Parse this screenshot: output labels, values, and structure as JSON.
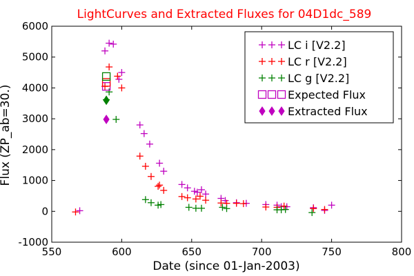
{
  "chart_data": {
    "type": "scatter",
    "title": "LightCurves and Extracted Fluxes for 04D1dc_589",
    "xlabel": "Date (since 01-Jan-2003)",
    "ylabel": "Flux (ZP_ab=30.)",
    "xlim": [
      550,
      800
    ],
    "ylim": [
      -1000,
      6000
    ],
    "xticks": [
      "550",
      "600",
      "650",
      "700",
      "750",
      "800"
    ],
    "yticks": [
      "-1000",
      "0",
      "1000",
      "2000",
      "3000",
      "4000",
      "5000",
      "6000"
    ],
    "legend_position": "top-right",
    "series": [
      {
        "name": "LC i [V2.2]",
        "marker": "plus",
        "color": "#bf00bf",
        "points": [
          [
            570,
            20
          ],
          [
            588,
            5200
          ],
          [
            591,
            5450
          ],
          [
            594,
            5420
          ],
          [
            598,
            4280
          ],
          [
            600,
            4500
          ],
          [
            613,
            2800
          ],
          [
            616,
            2520
          ],
          [
            620,
            2180
          ],
          [
            627,
            1560
          ],
          [
            630,
            1300
          ],
          [
            643,
            870
          ],
          [
            647,
            760
          ],
          [
            652,
            650
          ],
          [
            654,
            620
          ],
          [
            657,
            700
          ],
          [
            660,
            560
          ],
          [
            671,
            420
          ],
          [
            674,
            350
          ],
          [
            682,
            280
          ],
          [
            689,
            260
          ],
          [
            703,
            220
          ],
          [
            711,
            200
          ],
          [
            714,
            150
          ],
          [
            718,
            150
          ],
          [
            737,
            120
          ],
          [
            745,
            30
          ],
          [
            750,
            200
          ]
        ]
      },
      {
        "name": "LC r [V2.2]",
        "marker": "plus",
        "color": "#ff0000",
        "points": [
          [
            567,
            -20
          ],
          [
            588,
            4050
          ],
          [
            591,
            4680
          ],
          [
            597,
            4380
          ],
          [
            600,
            4000
          ],
          [
            613,
            1790
          ],
          [
            617,
            1460
          ],
          [
            621,
            1130
          ],
          [
            626,
            810
          ],
          [
            627,
            850
          ],
          [
            630,
            680
          ],
          [
            643,
            480
          ],
          [
            647,
            440
          ],
          [
            653,
            400
          ],
          [
            656,
            490
          ],
          [
            660,
            360
          ],
          [
            671,
            270
          ],
          [
            675,
            260
          ],
          [
            682,
            260
          ],
          [
            687,
            250
          ],
          [
            703,
            140
          ],
          [
            711,
            130
          ],
          [
            716,
            170
          ],
          [
            737,
            90
          ],
          [
            745,
            60
          ]
        ]
      },
      {
        "name": "LC g [V2.2]",
        "marker": "plus",
        "color": "#008000",
        "points": [
          [
            589,
            3620
          ],
          [
            591,
            3870
          ],
          [
            596,
            2980
          ],
          [
            617,
            380
          ],
          [
            621,
            280
          ],
          [
            626,
            200
          ],
          [
            628,
            220
          ],
          [
            648,
            130
          ],
          [
            653,
            100
          ],
          [
            657,
            100
          ],
          [
            672,
            130
          ],
          [
            675,
            90
          ],
          [
            711,
            50
          ],
          [
            714,
            50
          ],
          [
            717,
            60
          ],
          [
            736,
            -40
          ]
        ]
      },
      {
        "name": "Expected Flux",
        "marker": "open-square",
        "colors": [
          "#bf00bf",
          "#ff0000",
          "#008000"
        ],
        "points": [
          [
            589,
            4050,
            "#bf00bf"
          ],
          [
            589,
            4180,
            "#ff0000"
          ],
          [
            589,
            4370,
            "#008000"
          ]
        ]
      },
      {
        "name": "Extracted Flux",
        "marker": "diamond",
        "colors": [
          "#bf00bf",
          "#ff0000",
          "#008000"
        ],
        "points": [
          [
            589,
            2980,
            "#bf00bf"
          ],
          [
            589,
            3600,
            "#008000"
          ]
        ]
      }
    ]
  }
}
